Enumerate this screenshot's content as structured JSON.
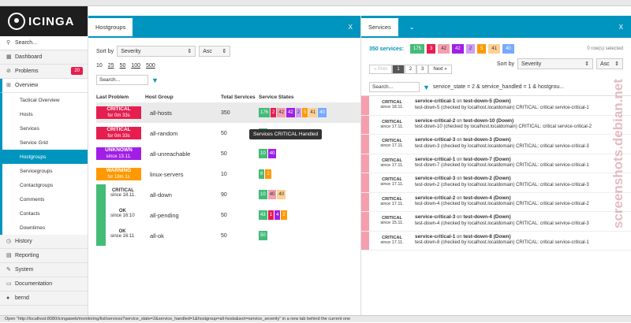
{
  "app": {
    "logo": "ICINGA"
  },
  "sidebar": {
    "search_placeholder": "Search...",
    "items": [
      {
        "label": "Dashboard"
      },
      {
        "label": "Problems",
        "badge": "20"
      },
      {
        "label": "Overview"
      }
    ],
    "overview_sub": [
      "Tactical Overview",
      "Hosts",
      "Services",
      "Service Grid",
      "Hostgroups",
      "Servicegroups",
      "Contactgroups",
      "Comments",
      "Contacts",
      "Downtimes"
    ],
    "bottom": [
      {
        "label": "History"
      },
      {
        "label": "Reporting"
      },
      {
        "label": "System"
      },
      {
        "label": "Documentation"
      },
      {
        "label": "bernd"
      }
    ]
  },
  "hostgroups": {
    "tab": "Hostgroups",
    "close": "X",
    "sort_label": "Sort by",
    "sort_value": "Severity",
    "order_value": "Asc",
    "limits": [
      "10",
      "25",
      "50",
      "100",
      "500"
    ],
    "search_placeholder": "Search...",
    "headers": [
      "Last Problem",
      "Host Group",
      "Total Services",
      "Service States"
    ],
    "rows": [
      {
        "state": "CRITICAL",
        "since": "for 0m 33s",
        "name": "all-hosts",
        "total": "350",
        "pills": [
          "176",
          "2",
          "42",
          "42",
          "2",
          "5",
          "41",
          "40"
        ]
      },
      {
        "state": "CRITICAL",
        "since": "for 0m 33s",
        "name": "all-random",
        "total": "50",
        "pills": [
          "13"
        ]
      },
      {
        "state": "UNKNOWN",
        "since": "since 13.11.",
        "name": "all-unreachable",
        "total": "50",
        "pills": [
          "10",
          "40"
        ]
      },
      {
        "state": "WARNING",
        "since": "for 18m 1s",
        "name": "linux-servers",
        "total": "10",
        "pills": [
          "8",
          "2"
        ]
      },
      {
        "state": "CRITICAL",
        "since": "since 18.11.",
        "name": "all-down",
        "total": "90",
        "pills": [
          "10",
          "40",
          "40"
        ]
      },
      {
        "state": "OK",
        "since": "since 16:10",
        "name": "all-pending",
        "total": "50",
        "pills": [
          "43",
          "1",
          "4",
          "2"
        ]
      },
      {
        "state": "OK",
        "since": "since 16:11",
        "name": "all-ok",
        "total": "50",
        "pills": [
          "50"
        ]
      }
    ],
    "tooltip": "Services CRITICAL Handled"
  },
  "services": {
    "tab": "Services",
    "close": "X",
    "count_label": "350 services:",
    "summary_pills": [
      "175",
      "3",
      "42",
      "42",
      "2",
      "5",
      "41",
      "40"
    ],
    "rows_selected": "0 row(s) selected",
    "sort_label": "Sort by",
    "sort_value": "Severity",
    "order_value": "Asc",
    "pager": [
      "« Prev",
      "1",
      "2",
      "3",
      "Next »"
    ],
    "search_placeholder": "Search...",
    "filter_text": "service_state = 2 & service_handled = 1 & hostgrou...",
    "rows": [
      {
        "state": "CRITICAL",
        "since": "since 18.11.",
        "title": "service-critical-1",
        "host": "test-down-5 (Down)",
        "output": "test-down-5 (checked by localhost.localdomain) CRITICAL: critical service-critical-1"
      },
      {
        "state": "CRITICAL",
        "since": "since 17.11.",
        "title": "service-critical-2",
        "host": "test-down-10 (Down)",
        "output": "test-down-10 (checked by localhost.localdomain) CRITICAL: critical service-critical-2"
      },
      {
        "state": "CRITICAL",
        "since": "since 17.11.",
        "title": "service-critical-3",
        "host": "test-down-3 (Down)",
        "output": "test-down-3 (checked by localhost.localdomain) CRITICAL: critical service-critical-3"
      },
      {
        "state": "CRITICAL",
        "since": "since 17.11.",
        "title": "service-critical-1",
        "host": "test-down-7 (Down)",
        "output": "test-down-7 (checked by localhost.localdomain) CRITICAL: critical service-critical-1"
      },
      {
        "state": "CRITICAL",
        "since": "since 17.11.",
        "title": "service-critical-3",
        "host": "test-down-2 (Down)",
        "output": "test-down-2 (checked by localhost.localdomain) CRITICAL: critical service-critical-3"
      },
      {
        "state": "CRITICAL",
        "since": "since 17.11.",
        "title": "service-critical-2",
        "host": "test-down-4 (Down)",
        "output": "test-down-4 (checked by localhost.localdomain) CRITICAL: critical service-critical-2"
      },
      {
        "state": "CRITICAL",
        "since": "since 15.11.",
        "title": "service-critical-3",
        "host": "test-down-4 (Down)",
        "output": "test-down-4 (checked by localhost.localdomain) CRITICAL: critical service-critical-3"
      },
      {
        "state": "CRITICAL",
        "since": "since 17.11.",
        "title": "service-critical-1",
        "host": "test-down-8 (Down)",
        "output": "test-down-8 (checked by localhost.localdomain) CRITICAL: critical service-critical-1"
      }
    ],
    "on": "on"
  },
  "statusbar": "Open \"http://localhost:8080/icingaweb/monitoring/list/services?service_state=2&service_handled=1&hostgroup=all-hosts&sort=service_severity\" in a new tab behind the current one",
  "watermark": "screenshots.debian.net"
}
